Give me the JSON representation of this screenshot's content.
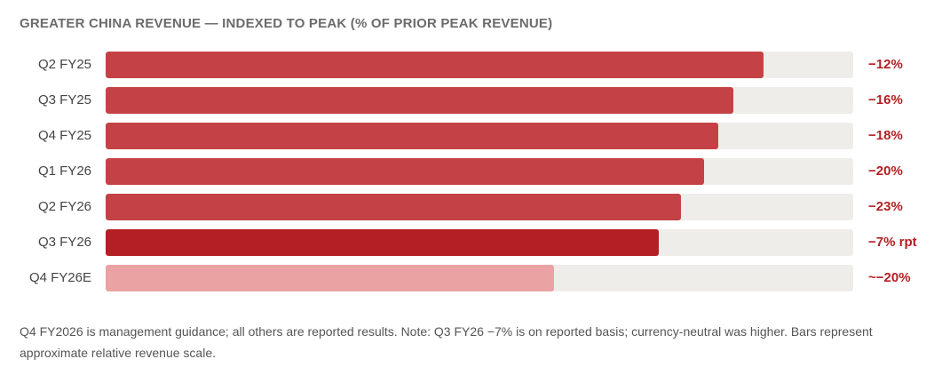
{
  "chart_data": {
    "type": "bar",
    "orientation": "horizontal",
    "title": "GREATER CHINA REVENUE — INDEXED TO PEAK (% OF PRIOR PEAK REVENUE)",
    "xlabel": "",
    "ylabel": "",
    "xlim": [
      0,
      100
    ],
    "grid": false,
    "categories": [
      "Q2 FY25",
      "Q3 FY25",
      "Q4 FY25",
      "Q1 FY26",
      "Q2 FY26",
      "Q3 FY26",
      "Q4 FY26E"
    ],
    "values": [
      88,
      84,
      82,
      80,
      77,
      74,
      60
    ],
    "value_labels": [
      "−12%",
      "−16%",
      "−18%",
      "−20%",
      "−23%",
      "−7% rpt",
      "~−20%"
    ],
    "bar_kinds": [
      "reported",
      "reported",
      "reported",
      "reported",
      "reported",
      "highlight",
      "guidance"
    ]
  },
  "colors": {
    "reported": "#c44245",
    "highlight": "#b31f22",
    "guidance": "#eaa2a2",
    "track": "#efedea",
    "value_text": "#b31f22"
  },
  "footnote": "Q4 FY2026 is management guidance; all others are reported results. Note: Q3 FY26 −7% is on reported basis; currency-neutral was higher. Bars represent approximate relative revenue scale."
}
